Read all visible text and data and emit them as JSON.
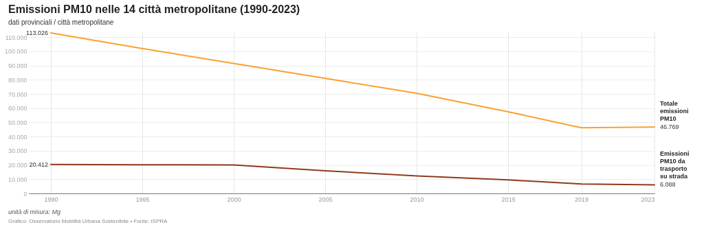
{
  "chart_data": {
    "type": "line",
    "title": "Emissioni PM10 nelle 14 città metropolitane (1990-2023)",
    "subtitle": "dati provinciali / città metropolitane",
    "x": [
      1990,
      1995,
      2000,
      2005,
      2010,
      2015,
      2019,
      2023
    ],
    "series": [
      {
        "name": "Totale emissioni PM10",
        "color": "#f9a12e",
        "values": [
          113026,
          102000,
          91500,
          81000,
          70500,
          57500,
          46300,
          46769
        ],
        "value_labels": [
          "113.026",
          null,
          null,
          null,
          null,
          null,
          null,
          "46.769"
        ]
      },
      {
        "name": "Emissioni PM10 da trasporto su strada",
        "color": "#8e3a1d",
        "values": [
          20412,
          20200,
          20000,
          16000,
          12300,
          9500,
          6700,
          6088
        ],
        "value_labels": [
          "20.412",
          null,
          null,
          null,
          null,
          null,
          null,
          "6.088"
        ]
      }
    ],
    "xlim": [
      1988.8,
      2023
    ],
    "xticks": [
      1990,
      1995,
      2000,
      2005,
      2010,
      2015,
      2019,
      2023
    ],
    "ylim": [
      0,
      114000
    ],
    "yticks": [
      0,
      {
        "value": 10000,
        "label": "10.000"
      },
      {
        "value": 20000,
        "label": "20.000"
      },
      {
        "value": 30000,
        "label": "30.000"
      },
      {
        "value": 40000,
        "label": "40.000"
      },
      {
        "value": 50000,
        "label": "50.000"
      },
      {
        "value": 60000,
        "label": "60.000"
      },
      {
        "value": 70000,
        "label": "70.000"
      },
      {
        "value": 80000,
        "label": "80.000"
      },
      {
        "value": 90000,
        "label": "90.000"
      },
      {
        "value": 100000,
        "label": "100.000"
      },
      {
        "value": 110000,
        "label": "110.000"
      }
    ],
    "grid": true,
    "annotations": [
      "unità di misura: Mg",
      "Grafico: Osservatorio Mobilità Urbana Sostenibile • Fonte: ISPRA"
    ]
  }
}
